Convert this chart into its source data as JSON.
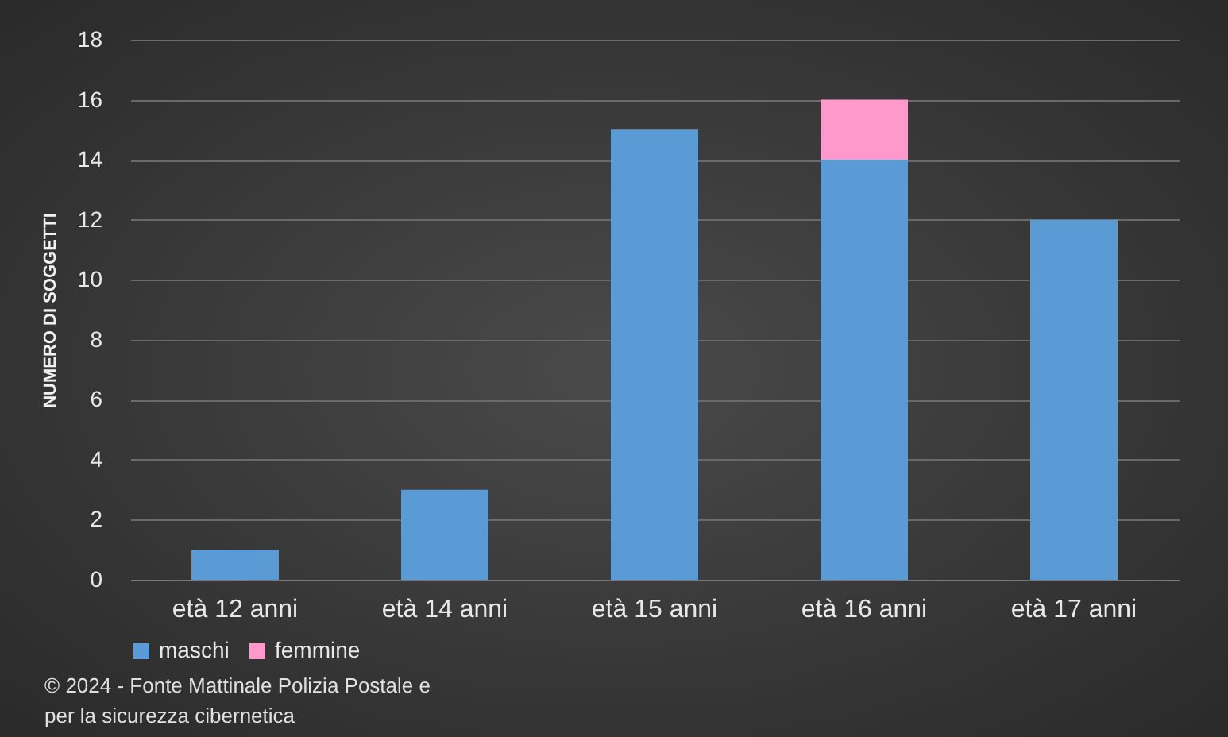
{
  "chart_data": {
    "type": "bar",
    "stacked": true,
    "ylabel": "NUMERO DI SOGGETTI",
    "categories": [
      "età 12 anni",
      "età 14 anni",
      "età 15 anni",
      "età 16 anni",
      "età 17 anni"
    ],
    "series": [
      {
        "name": "maschi",
        "color": "#5b9bd5",
        "values": [
          1,
          3,
          15,
          14,
          12
        ]
      },
      {
        "name": "femmine",
        "color": "#ff99cc",
        "values": [
          null,
          null,
          null,
          2,
          null
        ]
      }
    ],
    "ylim": [
      0,
      18
    ],
    "yticks": [
      0,
      2,
      4,
      6,
      8,
      10,
      12,
      14,
      16,
      18
    ],
    "grid": "y",
    "legend": "bottom",
    "annotations": [
      "© 2024 - Fonte Mattinale Polizia Postale e per la sicurezza cibernetica"
    ]
  }
}
